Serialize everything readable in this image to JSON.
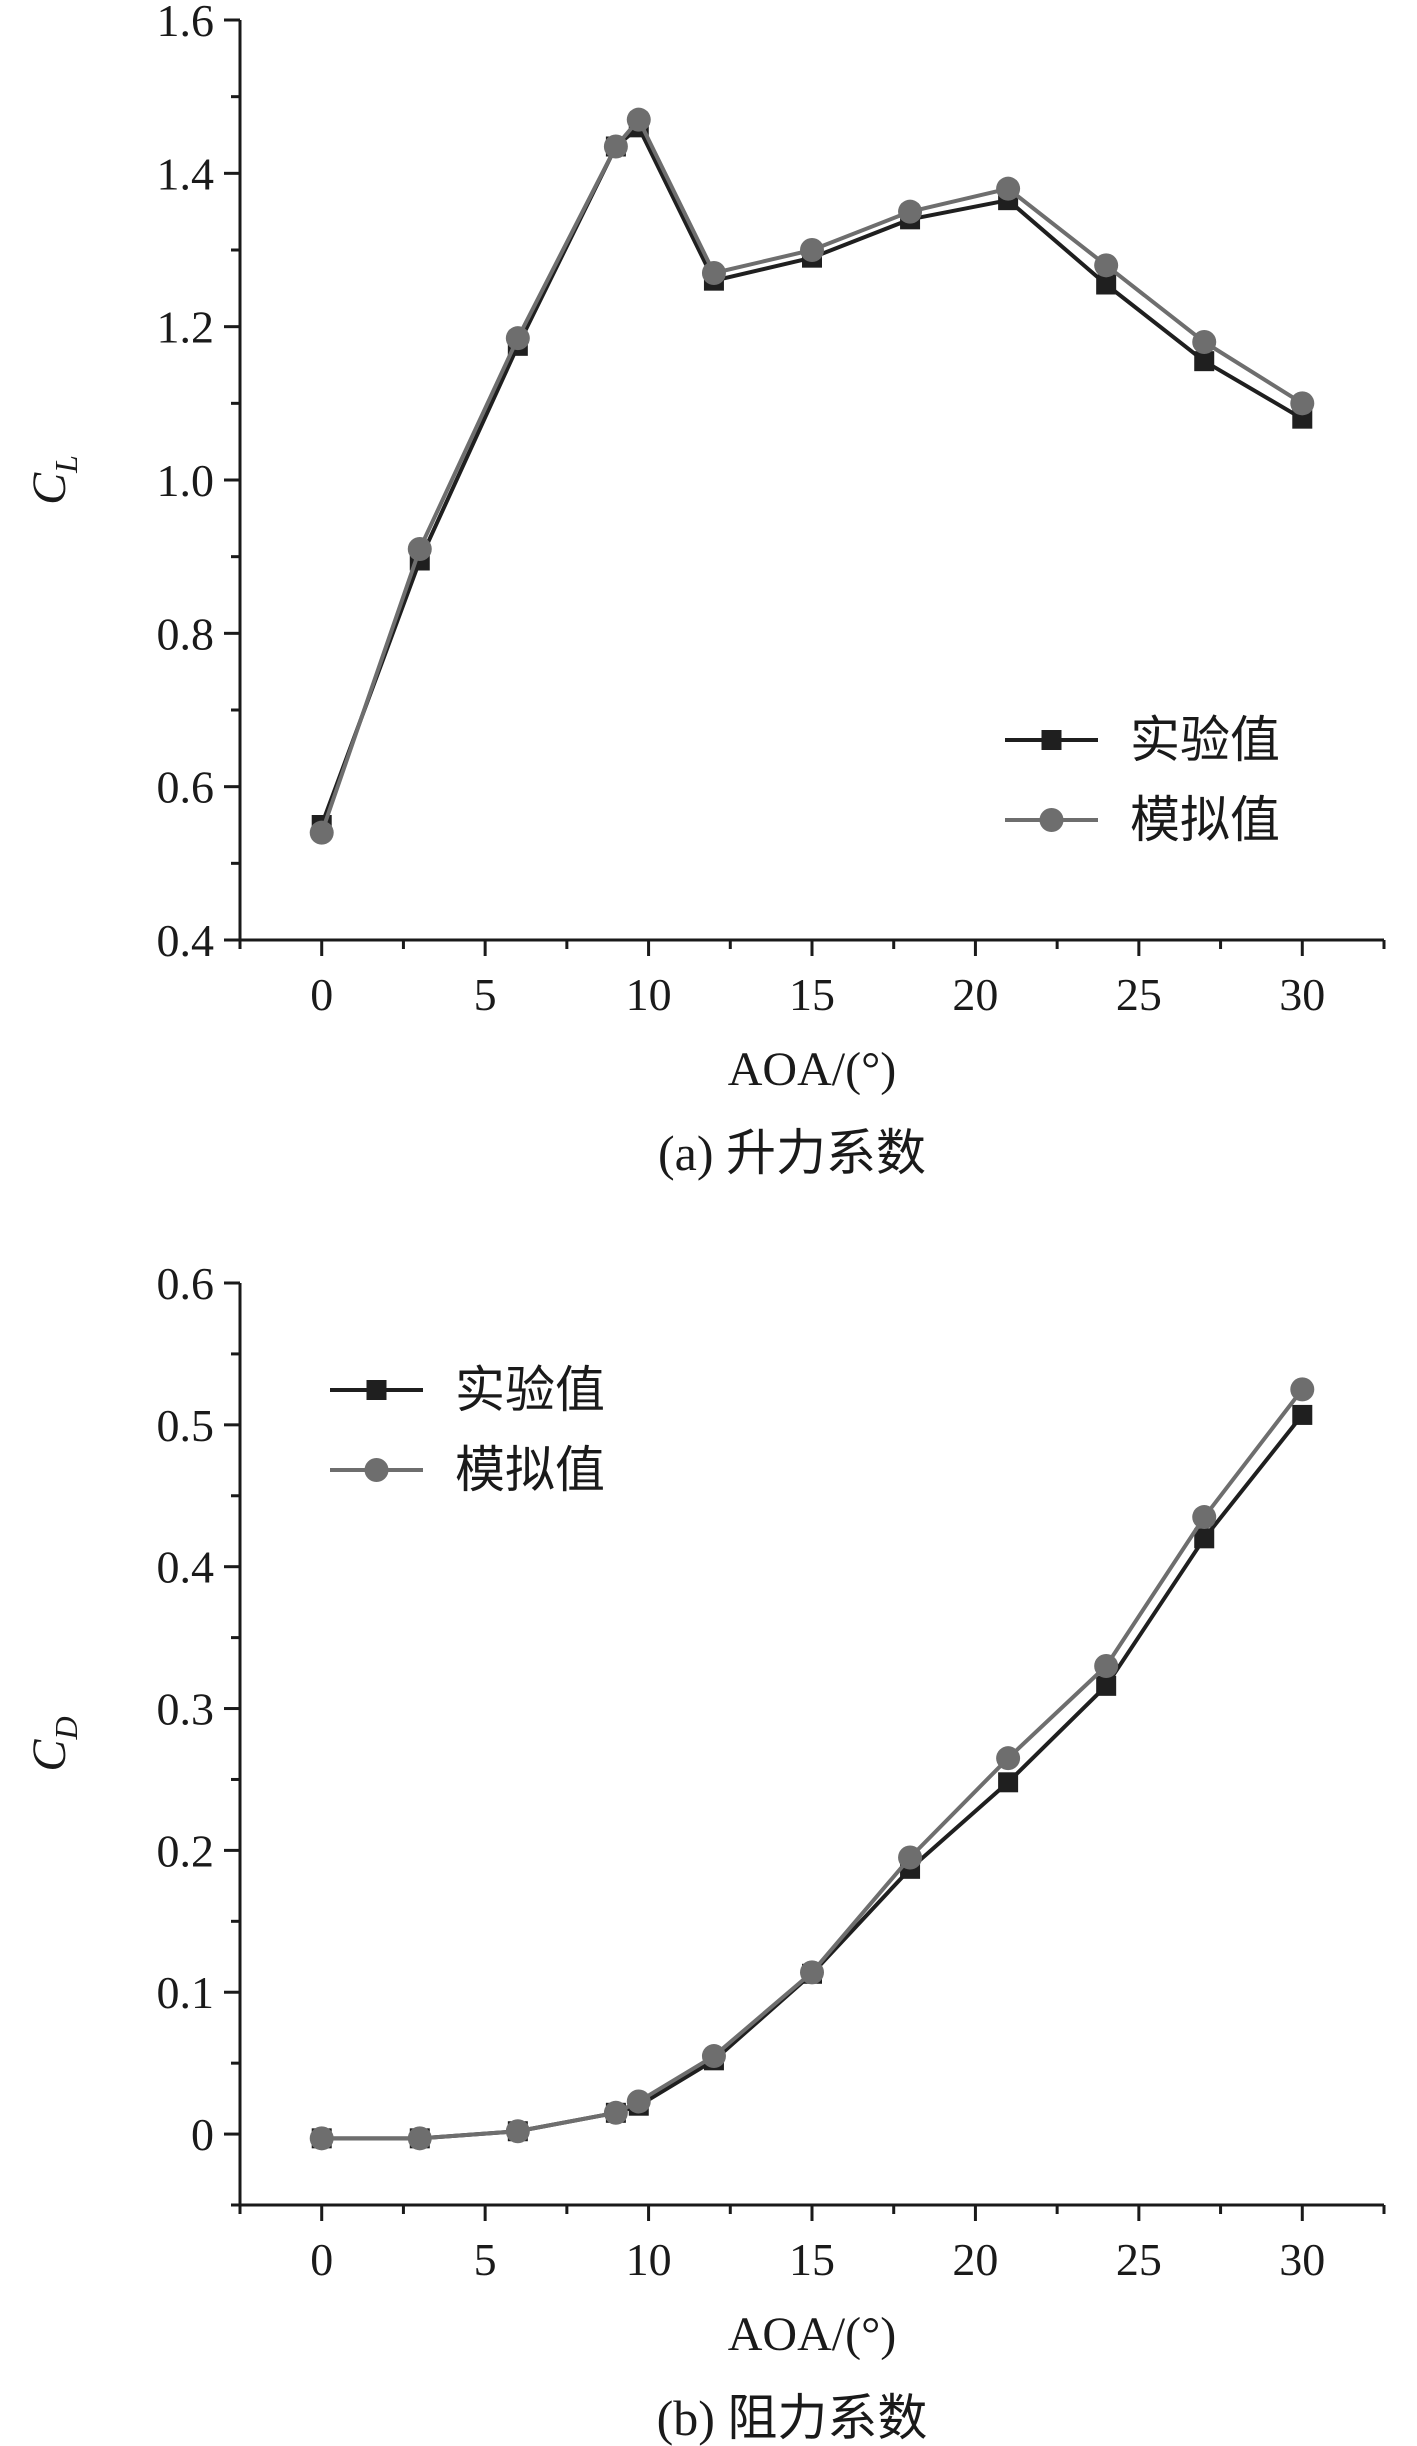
{
  "chart_data": [
    {
      "type": "line",
      "caption": "(a) 升力系数",
      "xlabel": "AOA/(°)",
      "ylabel_main": "C",
      "ylabel_sub": "L",
      "xlim": [
        -2.5,
        32.5
      ],
      "ylim": [
        0.4,
        1.6
      ],
      "xticks": [
        0,
        5,
        10,
        15,
        20,
        25,
        30
      ],
      "yticks": [
        0.4,
        0.6,
        0.8,
        1.0,
        1.2,
        1.4,
        1.6
      ],
      "ytick_labels": [
        "0.4",
        "0.6",
        "0.8",
        "1.0",
        "1.2",
        "1.4",
        "1.6"
      ],
      "minor_xticks": [
        -2.5,
        2.5,
        7.5,
        12.5,
        17.5,
        22.5,
        27.5,
        32.5
      ],
      "minor_yticks": [
        0.5,
        0.7,
        0.9,
        1.1,
        1.3,
        1.5
      ],
      "legend_position": "right",
      "x": [
        0,
        3,
        6,
        9,
        9.7,
        12,
        15,
        18,
        21,
        24,
        27,
        30
      ],
      "series": [
        {
          "name": "实验值",
          "marker": "square",
          "color": "#1f1f1f",
          "values": [
            0.55,
            0.895,
            1.175,
            1.435,
            1.46,
            1.26,
            1.29,
            1.34,
            1.365,
            1.255,
            1.155,
            1.08
          ]
        },
        {
          "name": "模拟值",
          "marker": "circle",
          "color": "#6e6e6e",
          "values": [
            0.54,
            0.91,
            1.185,
            1.435,
            1.47,
            1.27,
            1.3,
            1.35,
            1.38,
            1.28,
            1.18,
            1.1
          ]
        }
      ]
    },
    {
      "type": "line",
      "caption": "(b) 阻力系数",
      "xlabel": "AOA/(°)",
      "ylabel_main": "C",
      "ylabel_sub": "D",
      "xlim": [
        -2.5,
        32.5
      ],
      "ylim": [
        -0.05,
        0.6
      ],
      "xticks": [
        0,
        5,
        10,
        15,
        20,
        25,
        30
      ],
      "yticks": [
        0,
        0.1,
        0.2,
        0.3,
        0.4,
        0.5,
        0.6
      ],
      "ytick_labels": [
        "0",
        "0.1",
        "0.2",
        "0.3",
        "0.4",
        "0.5",
        "0.6"
      ],
      "minor_xticks": [
        -2.5,
        2.5,
        7.5,
        12.5,
        17.5,
        22.5,
        27.5,
        32.5
      ],
      "minor_yticks": [
        -0.05,
        0.05,
        0.15,
        0.25,
        0.35,
        0.45,
        0.55
      ],
      "legend_position": "top-left",
      "x": [
        0,
        3,
        6,
        9,
        9.7,
        12,
        15,
        18,
        21,
        24,
        27,
        30
      ],
      "series": [
        {
          "name": "实验值",
          "marker": "square",
          "color": "#1f1f1f",
          "values": [
            -0.003,
            -0.003,
            0.002,
            0.015,
            0.02,
            0.052,
            0.113,
            0.187,
            0.248,
            0.316,
            0.42,
            0.507
          ]
        },
        {
          "name": "模拟值",
          "marker": "circle",
          "color": "#6e6e6e",
          "values": [
            -0.003,
            -0.003,
            0.002,
            0.015,
            0.023,
            0.055,
            0.114,
            0.195,
            0.265,
            0.33,
            0.435,
            0.525
          ]
        }
      ]
    }
  ]
}
